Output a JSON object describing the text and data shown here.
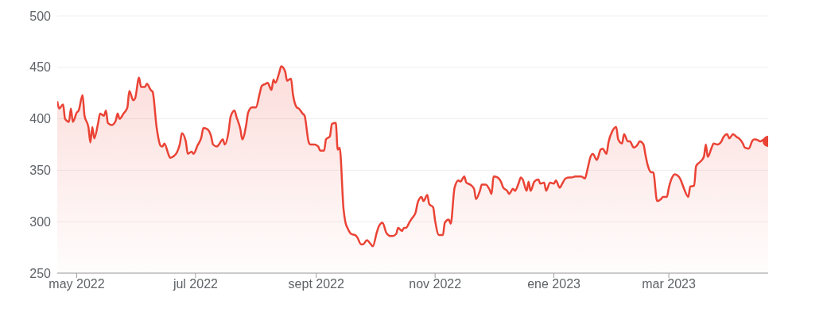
{
  "chart_data": {
    "type": "area",
    "x": [
      "2022-04-21",
      "2022-04-22",
      "2022-04-24",
      "2022-04-25",
      "2022-04-27",
      "2022-04-28",
      "2022-04-29",
      "2022-05-01",
      "2022-05-02",
      "2022-05-04",
      "2022-05-05",
      "2022-05-07",
      "2022-05-08",
      "2022-05-09",
      "2022-05-10",
      "2022-05-12",
      "2022-05-13",
      "2022-05-15",
      "2022-05-16",
      "2022-05-17",
      "2022-05-19",
      "2022-05-21",
      "2022-05-22",
      "2022-05-23",
      "2022-05-25",
      "2022-05-27",
      "2022-05-28",
      "2022-05-30",
      "2022-05-31",
      "2022-06-02",
      "2022-06-03",
      "2022-06-05",
      "2022-06-06",
      "2022-06-08",
      "2022-06-09",
      "2022-06-11",
      "2022-06-13",
      "2022-06-14",
      "2022-06-15",
      "2022-06-17",
      "2022-06-18",
      "2022-06-20",
      "2022-06-21",
      "2022-06-23",
      "2022-06-24",
      "2022-06-26",
      "2022-06-27",
      "2022-06-29",
      "2022-06-30",
      "2022-07-02",
      "2022-07-04",
      "2022-07-05",
      "2022-07-07",
      "2022-07-09",
      "2022-07-10",
      "2022-07-12",
      "2022-07-13",
      "2022-07-15",
      "2022-07-16",
      "2022-07-18",
      "2022-07-19",
      "2022-07-21",
      "2022-07-22",
      "2022-07-24",
      "2022-07-25",
      "2022-07-27",
      "2022-07-28",
      "2022-07-30",
      "2022-08-01",
      "2022-08-03",
      "2022-08-04",
      "2022-08-06",
      "2022-08-07",
      "2022-08-09",
      "2022-08-10",
      "2022-08-11",
      "2022-08-13",
      "2022-08-14",
      "2022-08-16",
      "2022-08-17",
      "2022-08-19",
      "2022-08-20",
      "2022-08-22",
      "2022-08-23",
      "2022-08-25",
      "2022-08-26",
      "2022-08-28",
      "2022-08-29",
      "2022-08-31",
      "2022-09-02",
      "2022-09-03",
      "2022-09-05",
      "2022-09-06",
      "2022-09-08",
      "2022-09-09",
      "2022-09-11",
      "2022-09-12",
      "2022-09-13",
      "2022-09-15",
      "2022-09-16",
      "2022-09-17",
      "2022-09-19",
      "2022-09-21",
      "2022-09-22",
      "2022-09-24",
      "2022-09-25",
      "2022-09-27",
      "2022-09-29",
      "2022-09-30",
      "2022-10-02",
      "2022-10-03",
      "2022-10-05",
      "2022-10-07",
      "2022-10-09",
      "2022-10-10",
      "2022-10-12",
      "2022-10-13",
      "2022-10-15",
      "2022-10-16",
      "2022-10-17",
      "2022-10-19",
      "2022-10-20",
      "2022-10-22",
      "2022-10-23",
      "2022-10-25",
      "2022-10-26",
      "2022-10-28",
      "2022-10-29",
      "2022-10-31",
      "2022-11-01",
      "2022-11-03",
      "2022-11-05",
      "2022-11-06",
      "2022-11-08",
      "2022-11-09",
      "2022-11-11",
      "2022-11-13",
      "2022-11-14",
      "2022-11-16",
      "2022-11-17",
      "2022-11-19",
      "2022-11-21",
      "2022-11-22",
      "2022-11-24",
      "2022-11-25",
      "2022-11-27",
      "2022-11-29",
      "2022-11-30",
      "2022-12-01",
      "2022-12-03",
      "2022-12-05",
      "2022-12-06",
      "2022-12-08",
      "2022-12-09",
      "2022-12-11",
      "2022-12-12",
      "2022-12-14",
      "2022-12-15",
      "2022-12-16",
      "2022-12-18",
      "2022-12-19",
      "2022-12-20",
      "2022-12-22",
      "2022-12-24",
      "2022-12-25",
      "2022-12-27",
      "2022-12-28",
      "2022-12-30",
      "2023-01-01",
      "2023-01-02",
      "2023-01-04",
      "2023-01-05",
      "2023-01-07",
      "2023-01-09",
      "2023-01-10",
      "2023-01-12",
      "2023-01-13",
      "2023-01-15",
      "2023-01-17",
      "2023-01-18",
      "2023-01-20",
      "2023-01-21",
      "2023-01-23",
      "2023-01-25",
      "2023-01-26",
      "2023-01-28",
      "2023-01-29",
      "2023-01-31",
      "2023-02-02",
      "2023-02-03",
      "2023-02-05",
      "2023-02-06",
      "2023-02-08",
      "2023-02-09",
      "2023-02-11",
      "2023-02-13",
      "2023-02-14",
      "2023-02-16",
      "2023-02-17",
      "2023-02-18",
      "2023-02-20",
      "2023-02-21",
      "2023-02-23",
      "2023-02-25",
      "2023-02-26",
      "2023-02-28",
      "2023-03-01",
      "2023-03-03",
      "2023-03-04",
      "2023-03-06",
      "2023-03-07",
      "2023-03-09",
      "2023-03-11",
      "2023-03-12",
      "2023-03-14",
      "2023-03-15",
      "2023-03-17",
      "2023-03-19",
      "2023-03-20",
      "2023-03-21",
      "2023-03-23",
      "2023-03-24",
      "2023-03-26",
      "2023-03-28",
      "2023-03-29",
      "2023-03-31",
      "2023-04-01",
      "2023-04-03",
      "2023-04-05",
      "2023-04-06",
      "2023-04-08",
      "2023-04-09",
      "2023-04-11",
      "2023-04-13",
      "2023-04-14",
      "2023-04-16",
      "2023-04-17",
      "2023-04-19",
      "2023-04-21"
    ],
    "series": [
      {
        "color": "#ea4335",
        "values": [
          417,
          410,
          414,
          400,
          397,
          410,
          397,
          406,
          408,
          423,
          403,
          392,
          377,
          392,
          381,
          396,
          405,
          403,
          408,
          396,
          394,
          398,
          405,
          400,
          405,
          411,
          427,
          418,
          420,
          440,
          431,
          431,
          434,
          428,
          426,
          392,
          374,
          373,
          376,
          366,
          362,
          364,
          366,
          376,
          386,
          378,
          366,
          368,
          366,
          374,
          382,
          391,
          390,
          383,
          375,
          373,
          375,
          380,
          375,
          388,
          402,
          408,
          402,
          390,
          380,
          394,
          406,
          411,
          411,
          425,
          432,
          434,
          435,
          428,
          438,
          435,
          445,
          451,
          446,
          437,
          439,
          424,
          411,
          410,
          405,
          403,
          378,
          375,
          375,
          373,
          369,
          369,
          380,
          383,
          395,
          396,
          370,
          372,
          312,
          299,
          294,
          288,
          287,
          285,
          278,
          278,
          282,
          278,
          276,
          289,
          295,
          299,
          289,
          286,
          286,
          288,
          294,
          291,
          294,
          294,
          300,
          303,
          309,
          318,
          324,
          320,
          326,
          317,
          314,
          301,
          287,
          287,
          299,
          302,
          298,
          333,
          340,
          339,
          344,
          338,
          336,
          332,
          322,
          330,
          336,
          336,
          331,
          327,
          344,
          343,
          338,
          333,
          330,
          327,
          332,
          330,
          338,
          343,
          341,
          330,
          339,
          330,
          339,
          341,
          337,
          338,
          330,
          338,
          337,
          340,
          333,
          336,
          342,
          343,
          343,
          344,
          344,
          344,
          342,
          349,
          364,
          366,
          360,
          370,
          371,
          366,
          377,
          388,
          392,
          380,
          376,
          385,
          378,
          378,
          372,
          375,
          378,
          375,
          365,
          356,
          348,
          348,
          320,
          322,
          324,
          324,
          333,
          344,
          346,
          344,
          341,
          331,
          324,
          334,
          335,
          354,
          358,
          363,
          375,
          363,
          372,
          376,
          375,
          378,
          382,
          385,
          381,
          385,
          382,
          381,
          376,
          372,
          371,
          379,
          380,
          379,
          378,
          380,
          378
        ]
      }
    ],
    "xlim": [
      "2022-04-21",
      "2023-04-21"
    ],
    "xticks": [
      {
        "value": "2022-05-01",
        "label": "may 2022"
      },
      {
        "value": "2022-07-01",
        "label": "jul 2022"
      },
      {
        "value": "2022-09-01",
        "label": "sept 2022"
      },
      {
        "value": "2022-11-01",
        "label": "nov 2022"
      },
      {
        "value": "2023-01-01",
        "label": "ene 2023"
      },
      {
        "value": "2023-03-01",
        "label": "mar 2023"
      }
    ],
    "ylim": [
      250,
      500
    ],
    "yticks": [
      250,
      300,
      350,
      400,
      450,
      500
    ],
    "grid": "y",
    "line_style": "solid"
  }
}
